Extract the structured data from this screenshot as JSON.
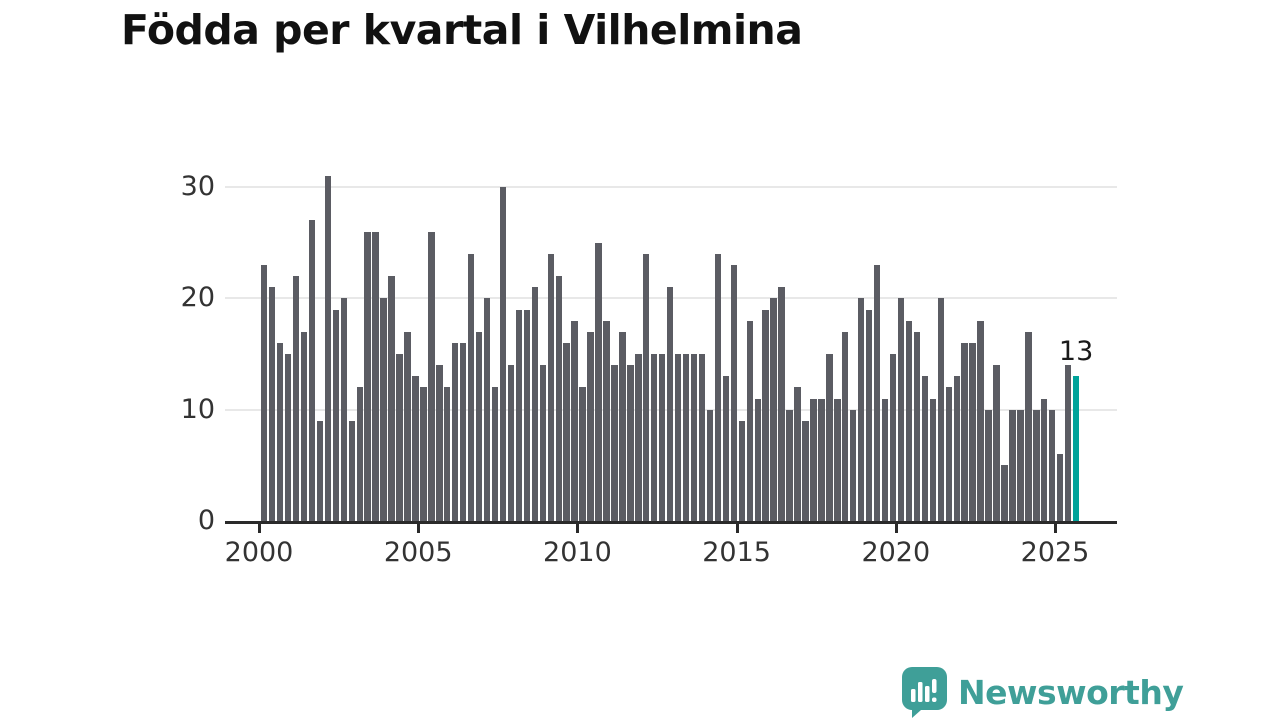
{
  "title": "Födda per kvartal i Vilhelmina",
  "colors": {
    "bar": "#5b5c63",
    "highlight": "#00a39a",
    "axis": "#2a2a2a",
    "grid": "#e8e8e8",
    "tick_text": "#333333",
    "logo": "#3f9f98"
  },
  "chart_data": {
    "type": "bar",
    "title": "Födda per kvartal i Vilhelmina",
    "start_quarter": "2000-Q1",
    "end_quarter": "2025-Q3",
    "values": [
      23,
      21,
      16,
      15,
      22,
      17,
      27,
      9,
      31,
      19,
      20,
      9,
      12,
      26,
      26,
      20,
      22,
      15,
      17,
      13,
      12,
      26,
      14,
      12,
      16,
      16,
      24,
      17,
      20,
      12,
      30,
      14,
      19,
      19,
      21,
      14,
      24,
      22,
      16,
      18,
      12,
      17,
      25,
      18,
      14,
      17,
      14,
      15,
      24,
      15,
      15,
      21,
      15,
      15,
      15,
      15,
      10,
      24,
      13,
      23,
      9,
      18,
      11,
      19,
      20,
      21,
      10,
      12,
      9,
      11,
      11,
      15,
      11,
      17,
      10,
      20,
      19,
      23,
      11,
      15,
      20,
      18,
      17,
      13,
      11,
      20,
      12,
      13,
      16,
      16,
      18,
      10,
      14,
      5,
      10,
      10,
      17,
      10,
      11,
      10,
      6,
      14,
      13
    ],
    "highlight_index": 102,
    "highlight_label": "13",
    "ylim": [
      0,
      31.5
    ],
    "y_ticks": [
      "0",
      "10",
      "20",
      "30"
    ],
    "x_ticks": [
      "2000",
      "2005",
      "2010",
      "2015",
      "2020",
      "2025"
    ],
    "grid": "horizontal",
    "legend": "none",
    "xlabel": "",
    "ylabel": ""
  },
  "branding": {
    "logo_text": "Newsworthy",
    "logo_icon": "speech-bubble-bar-chart"
  }
}
